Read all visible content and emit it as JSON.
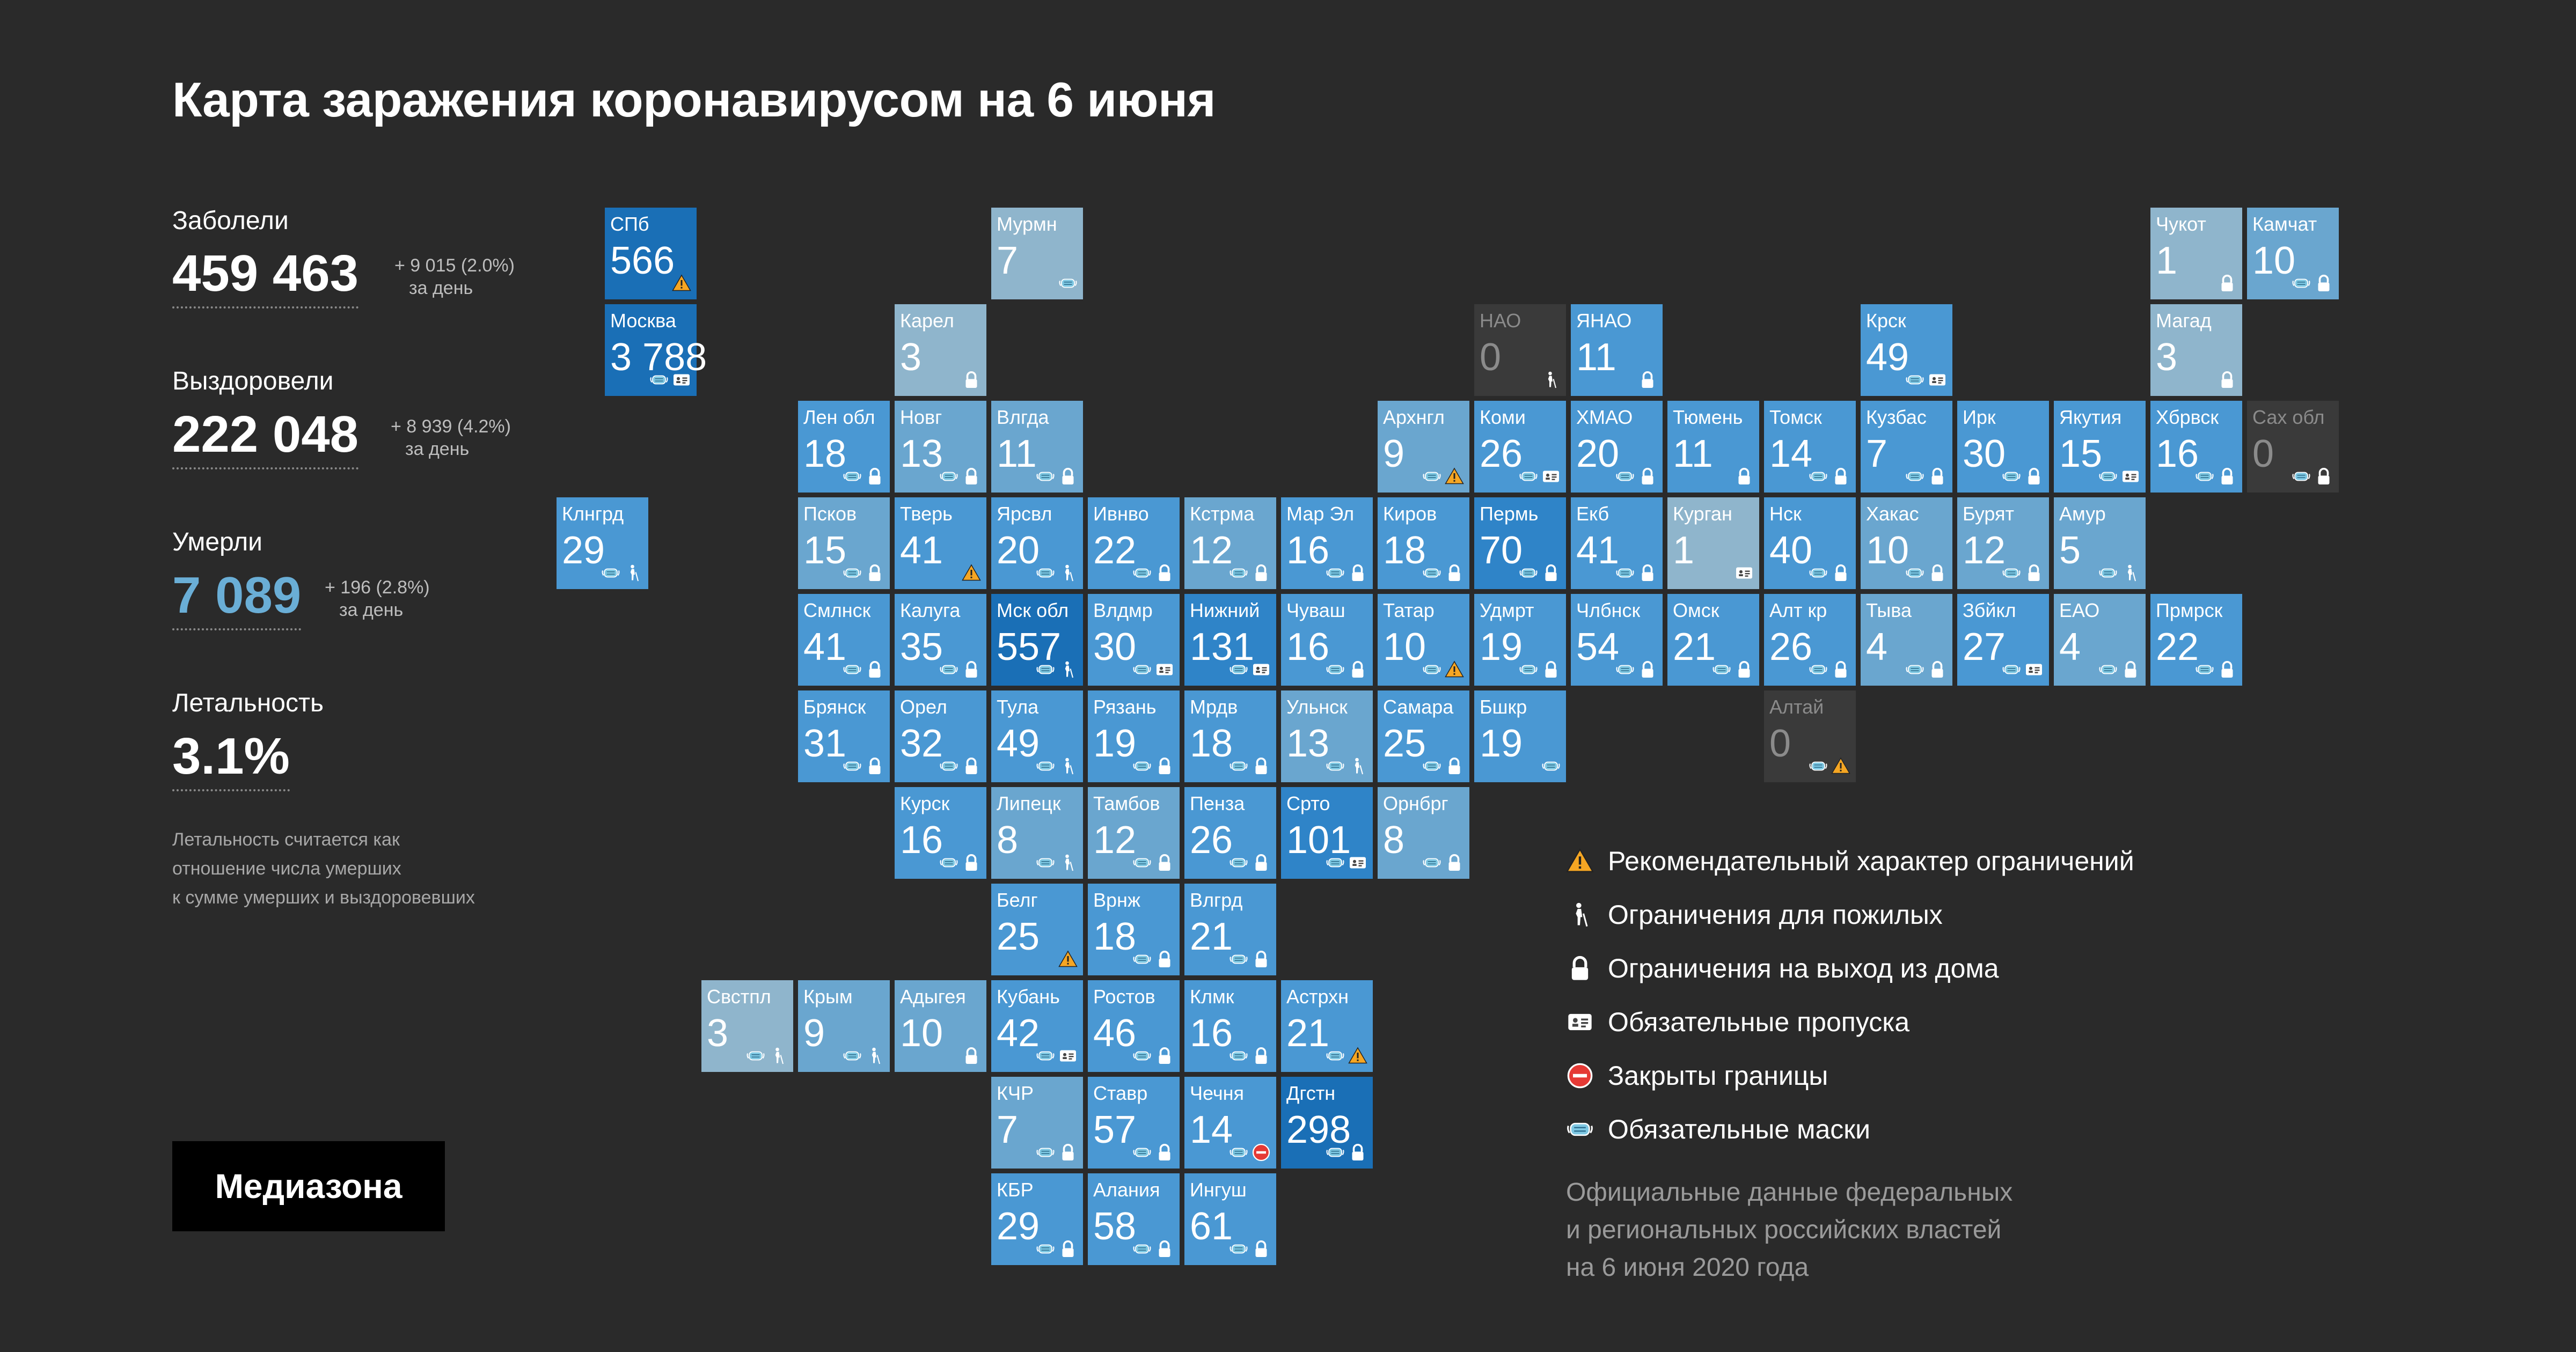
{
  "title": "Карта заражения коронавирусом на 6 июня",
  "stats": {
    "cases": {
      "label": "Заболели",
      "value": "459 463",
      "delta": "+ 9 015 (2.0%)",
      "per_day": "за день"
    },
    "recovered": {
      "label": "Выздоровели",
      "value": "222 048",
      "delta": "+ 8 939 (4.2%)",
      "per_day": "за день"
    },
    "deaths": {
      "label": "Умерли",
      "value": "7 089",
      "delta": "+ 196 (2.8%)",
      "per_day": "за день"
    },
    "lethality": {
      "label": "Летальность",
      "value": "3.1%"
    },
    "note_lines": [
      "Летальность считается как",
      "отношение числа умерших",
      "к сумме умерших и выздоровевших"
    ]
  },
  "logo": "Медиазона",
  "colors": {
    "background": "#2a2a2a",
    "grey_tile": "#3a3a3a",
    "deaths_value": "#6aaed6",
    "warning": "#f5a623",
    "closed_borders": "#e53935",
    "mask": "#7ec8e3"
  },
  "icon_names": {
    "warn": "warning-icon",
    "eld": "elderly-icon",
    "lock": "lock-icon",
    "pass": "pass-icon",
    "border": "closed-borders-icon",
    "mask": "mask-icon"
  },
  "legend": [
    {
      "icon": "warn",
      "text": "Рекомендательный характер ограничений"
    },
    {
      "icon": "eld",
      "text": "Ограничения для пожилых"
    },
    {
      "icon": "lock",
      "text": "Ограничения на выход из дома"
    },
    {
      "icon": "pass",
      "text": "Обязательные пропуска"
    },
    {
      "icon": "border",
      "text": "Закрыты границы"
    },
    {
      "icon": "mask",
      "text": "Обязательные маски"
    }
  ],
  "source_lines": [
    "Официальные данные федеральных",
    "и региональных российских властей",
    "на 6 июня 2020 года"
  ],
  "regions": [
    {
      "label": "СПб",
      "value": "566",
      "shade": 5,
      "icons": [
        "warn"
      ]
    },
    {
      "label": "Мурмн",
      "value": "7",
      "shade": 1,
      "icons": [
        "mask"
      ]
    },
    {
      "label": "Чукот",
      "value": "1",
      "shade": 1,
      "icons": [
        "lock"
      ]
    },
    {
      "label": "Камчат",
      "value": "10",
      "shade": 2,
      "icons": [
        "mask",
        "lock"
      ]
    },
    {
      "label": "Москва",
      "value": "3 788",
      "shade": 5,
      "icons": [
        "mask",
        "pass"
      ]
    },
    {
      "label": "Карел",
      "value": "3",
      "shade": 1,
      "icons": [
        "lock"
      ]
    },
    {
      "label": "НАО",
      "value": "0",
      "shade": 0,
      "icons": [
        "eld"
      ]
    },
    {
      "label": "ЯНАО",
      "value": "11",
      "shade": 3,
      "icons": [
        "lock"
      ]
    },
    {
      "label": "Крск",
      "value": "49",
      "shade": 3,
      "icons": [
        "mask",
        "pass"
      ]
    },
    {
      "label": "Магад",
      "value": "3",
      "shade": 1,
      "icons": [
        "lock"
      ]
    },
    {
      "label": "Лен обл",
      "value": "18",
      "shade": 3,
      "icons": [
        "mask",
        "lock"
      ]
    },
    {
      "label": "Новг",
      "value": "13",
      "shade": 2,
      "icons": [
        "mask",
        "lock"
      ]
    },
    {
      "label": "Влгда",
      "value": "11",
      "shade": 2,
      "icons": [
        "mask",
        "lock"
      ]
    },
    {
      "label": "Архнгл",
      "value": "9",
      "shade": 2,
      "icons": [
        "mask",
        "warn"
      ]
    },
    {
      "label": "Коми",
      "value": "26",
      "shade": 3,
      "icons": [
        "mask",
        "pass"
      ]
    },
    {
      "label": "ХМАО",
      "value": "20",
      "shade": 3,
      "icons": [
        "mask",
        "lock"
      ]
    },
    {
      "label": "Тюмень",
      "value": "11",
      "shade": 3,
      "icons": [
        "lock"
      ]
    },
    {
      "label": "Томск",
      "value": "14",
      "shade": 3,
      "icons": [
        "mask",
        "lock"
      ]
    },
    {
      "label": "Кузбас",
      "value": "7",
      "shade": 3,
      "icons": [
        "mask",
        "lock"
      ]
    },
    {
      "label": "Ирк",
      "value": "30",
      "shade": 3,
      "icons": [
        "mask",
        "lock"
      ]
    },
    {
      "label": "Якутия",
      "value": "15",
      "shade": 3,
      "icons": [
        "mask",
        "pass"
      ]
    },
    {
      "label": "Хбрвск",
      "value": "16",
      "shade": 3,
      "icons": [
        "mask",
        "lock"
      ]
    },
    {
      "label": "Сах обл",
      "value": "0",
      "shade": 0,
      "icons": [
        "mask",
        "lock"
      ]
    },
    {
      "label": "Клнгрд",
      "value": "29",
      "shade": 3,
      "icons": [
        "mask",
        "eld"
      ]
    },
    {
      "label": "Псков",
      "value": "15",
      "shade": 2,
      "icons": [
        "mask",
        "lock"
      ]
    },
    {
      "label": "Тверь",
      "value": "41",
      "shade": 3,
      "icons": [
        "warn"
      ]
    },
    {
      "label": "Ярсвл",
      "value": "20",
      "shade": 3,
      "icons": [
        "mask",
        "eld"
      ]
    },
    {
      "label": "Ивнво",
      "value": "22",
      "shade": 3,
      "icons": [
        "mask",
        "lock"
      ]
    },
    {
      "label": "Кстрма",
      "value": "12",
      "shade": 2,
      "icons": [
        "mask",
        "lock"
      ]
    },
    {
      "label": "Мар Эл",
      "value": "16",
      "shade": 3,
      "icons": [
        "mask",
        "lock"
      ]
    },
    {
      "label": "Киров",
      "value": "18",
      "shade": 3,
      "icons": [
        "mask",
        "lock"
      ]
    },
    {
      "label": "Пермь",
      "value": "70",
      "shade": 4,
      "icons": [
        "mask",
        "lock"
      ]
    },
    {
      "label": "Екб",
      "value": "41",
      "shade": 3,
      "icons": [
        "mask",
        "lock"
      ]
    },
    {
      "label": "Курган",
      "value": "1",
      "shade": 1,
      "icons": [
        "pass"
      ]
    },
    {
      "label": "Нск",
      "value": "40",
      "shade": 3,
      "icons": [
        "mask",
        "lock"
      ]
    },
    {
      "label": "Хакас",
      "value": "10",
      "shade": 2,
      "icons": [
        "mask",
        "lock"
      ]
    },
    {
      "label": "Бурят",
      "value": "12",
      "shade": 2,
      "icons": [
        "mask",
        "lock"
      ]
    },
    {
      "label": "Амур",
      "value": "5",
      "shade": 2,
      "icons": [
        "mask",
        "eld"
      ]
    },
    {
      "label": "Смлнск",
      "value": "41",
      "shade": 3,
      "icons": [
        "mask",
        "lock"
      ]
    },
    {
      "label": "Калуга",
      "value": "35",
      "shade": 3,
      "icons": [
        "mask",
        "lock"
      ]
    },
    {
      "label": "Мск обл",
      "value": "557",
      "shade": 5,
      "icons": [
        "mask",
        "eld"
      ]
    },
    {
      "label": "Влдмр",
      "value": "30",
      "shade": 3,
      "icons": [
        "mask",
        "pass"
      ]
    },
    {
      "label": "Нижний",
      "value": "131",
      "shade": 4,
      "icons": [
        "mask",
        "pass"
      ]
    },
    {
      "label": "Чуваш",
      "value": "16",
      "shade": 3,
      "icons": [
        "mask",
        "lock"
      ]
    },
    {
      "label": "Татар",
      "value": "10",
      "shade": 3,
      "icons": [
        "mask",
        "warn"
      ]
    },
    {
      "label": "Удмрт",
      "value": "19",
      "shade": 3,
      "icons": [
        "mask",
        "lock"
      ]
    },
    {
      "label": "Члбнск",
      "value": "54",
      "shade": 3,
      "icons": [
        "mask",
        "lock"
      ]
    },
    {
      "label": "Омск",
      "value": "21",
      "shade": 3,
      "icons": [
        "mask",
        "lock"
      ]
    },
    {
      "label": "Алт кр",
      "value": "26",
      "shade": 3,
      "icons": [
        "mask",
        "lock"
      ]
    },
    {
      "label": "Тыва",
      "value": "4",
      "shade": 2,
      "icons": [
        "mask",
        "lock"
      ]
    },
    {
      "label": "Збйкл",
      "value": "27",
      "shade": 3,
      "icons": [
        "mask",
        "pass"
      ]
    },
    {
      "label": "ЕАО",
      "value": "4",
      "shade": 2,
      "icons": [
        "mask",
        "lock"
      ]
    },
    {
      "label": "Прмрск",
      "value": "22",
      "shade": 3,
      "icons": [
        "mask",
        "lock"
      ]
    },
    {
      "label": "Брянск",
      "value": "31",
      "shade": 3,
      "icons": [
        "mask",
        "lock"
      ]
    },
    {
      "label": "Орел",
      "value": "32",
      "shade": 3,
      "icons": [
        "mask",
        "lock"
      ]
    },
    {
      "label": "Тула",
      "value": "49",
      "shade": 3,
      "icons": [
        "mask",
        "eld"
      ]
    },
    {
      "label": "Рязань",
      "value": "19",
      "shade": 3,
      "icons": [
        "mask",
        "lock"
      ]
    },
    {
      "label": "Мрдв",
      "value": "18",
      "shade": 3,
      "icons": [
        "mask",
        "lock"
      ]
    },
    {
      "label": "Ульнск",
      "value": "13",
      "shade": 2,
      "icons": [
        "mask",
        "eld"
      ]
    },
    {
      "label": "Самара",
      "value": "25",
      "shade": 3,
      "icons": [
        "mask",
        "lock"
      ]
    },
    {
      "label": "Бшкр",
      "value": "19",
      "shade": 3,
      "icons": [
        "mask"
      ]
    },
    {
      "label": "Алтай",
      "value": "0",
      "shade": 0,
      "icons": [
        "mask",
        "warn"
      ]
    },
    {
      "label": "Курск",
      "value": "16",
      "shade": 3,
      "icons": [
        "mask",
        "lock"
      ]
    },
    {
      "label": "Липецк",
      "value": "8",
      "shade": 2,
      "icons": [
        "mask",
        "eld"
      ]
    },
    {
      "label": "Тамбов",
      "value": "12",
      "shade": 2,
      "icons": [
        "mask",
        "lock"
      ]
    },
    {
      "label": "Пенза",
      "value": "26",
      "shade": 3,
      "icons": [
        "mask",
        "lock"
      ]
    },
    {
      "label": "Срто",
      "value": "101",
      "shade": 4,
      "icons": [
        "mask",
        "pass"
      ]
    },
    {
      "label": "Орнбрг",
      "value": "8",
      "shade": 2,
      "icons": [
        "mask",
        "lock"
      ]
    },
    {
      "label": "Белг",
      "value": "25",
      "shade": 3,
      "icons": [
        "warn"
      ]
    },
    {
      "label": "Врнж",
      "value": "18",
      "shade": 3,
      "icons": [
        "mask",
        "lock"
      ]
    },
    {
      "label": "Влгрд",
      "value": "21",
      "shade": 3,
      "icons": [
        "mask",
        "lock"
      ]
    },
    {
      "label": "Свстпл",
      "value": "3",
      "shade": 1,
      "icons": [
        "mask",
        "eld"
      ]
    },
    {
      "label": "Крым",
      "value": "9",
      "shade": 2,
      "icons": [
        "mask",
        "eld"
      ]
    },
    {
      "label": "Адыгея",
      "value": "10",
      "shade": 2,
      "icons": [
        "lock"
      ]
    },
    {
      "label": "Кубань",
      "value": "42",
      "shade": 3,
      "icons": [
        "mask",
        "pass"
      ]
    },
    {
      "label": "Ростов",
      "value": "46",
      "shade": 3,
      "icons": [
        "mask",
        "lock"
      ]
    },
    {
      "label": "Клмк",
      "value": "16",
      "shade": 3,
      "icons": [
        "mask",
        "lock"
      ]
    },
    {
      "label": "Астрхн",
      "value": "21",
      "shade": 3,
      "icons": [
        "mask",
        "warn"
      ]
    },
    {
      "label": "КЧР",
      "value": "7",
      "shade": 2,
      "icons": [
        "mask",
        "lock"
      ]
    },
    {
      "label": "Ставр",
      "value": "57",
      "shade": 3,
      "icons": [
        "mask",
        "lock"
      ]
    },
    {
      "label": "Чечня",
      "value": "14",
      "shade": 3,
      "icons": [
        "mask",
        "border"
      ]
    },
    {
      "label": "Дгстн",
      "value": "298",
      "shade": 5,
      "icons": [
        "mask",
        "lock"
      ]
    },
    {
      "label": "КБР",
      "value": "29",
      "shade": 3,
      "icons": [
        "mask",
        "lock"
      ]
    },
    {
      "label": "Алания",
      "value": "58",
      "shade": 3,
      "icons": [
        "mask",
        "lock"
      ]
    },
    {
      "label": "Ингуш",
      "value": "61",
      "shade": 3,
      "icons": [
        "mask",
        "lock"
      ]
    }
  ]
}
